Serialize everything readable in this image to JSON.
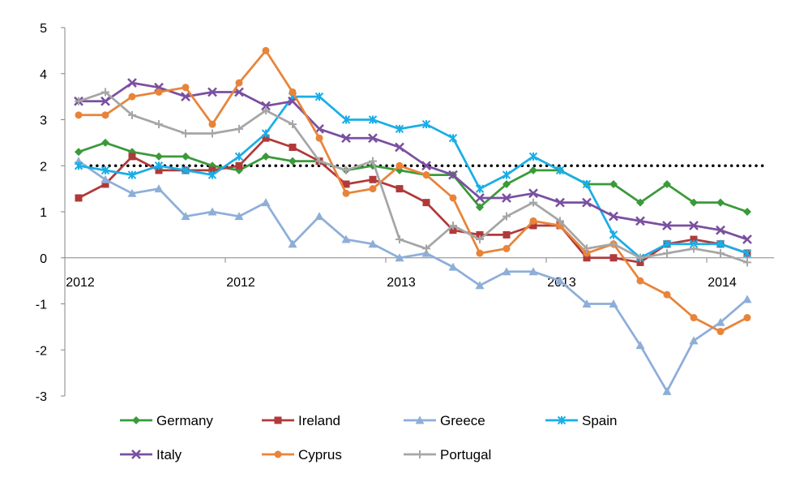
{
  "chart_data": {
    "type": "line",
    "title": "",
    "xlabel": "",
    "ylabel": "",
    "ylim": [
      -3,
      5
    ],
    "yticks": [
      -3,
      -2,
      -1,
      0,
      1,
      2,
      3,
      4,
      5
    ],
    "x_tick_labels": [
      "2012",
      "2012",
      "2013",
      "2013",
      "2014"
    ],
    "x_tick_index": [
      0,
      6,
      12,
      18,
      24
    ],
    "grid": false,
    "legend_position": "bottom",
    "reference_line": {
      "value": 2,
      "style": "dotted",
      "color": "#000000"
    },
    "series": [
      {
        "name": "Germany",
        "color": "#3a9a3a",
        "marker": "diamond",
        "values": [
          2.3,
          2.5,
          2.3,
          2.2,
          2.2,
          2.0,
          1.9,
          2.2,
          2.1,
          2.1,
          1.9,
          2.0,
          1.9,
          1.8,
          1.8,
          1.1,
          1.6,
          1.9,
          1.9,
          1.6,
          1.6,
          1.2,
          1.6,
          1.2,
          1.2,
          1.0
        ]
      },
      {
        "name": "Ireland",
        "color": "#b03a3a",
        "marker": "square",
        "values": [
          1.3,
          1.6,
          2.2,
          1.9,
          1.9,
          1.9,
          2.0,
          2.6,
          2.4,
          2.1,
          1.6,
          1.7,
          1.5,
          1.2,
          0.6,
          0.5,
          0.5,
          0.7,
          0.7,
          0.0,
          0.0,
          -0.1,
          0.3,
          0.4,
          0.3,
          0.1
        ]
      },
      {
        "name": "Greece",
        "color": "#8eaed8",
        "marker": "triangle",
        "values": [
          2.1,
          1.7,
          1.4,
          1.5,
          0.9,
          1.0,
          0.9,
          1.2,
          0.3,
          0.9,
          0.4,
          0.3,
          0.0,
          0.1,
          -0.2,
          -0.6,
          -0.3,
          -0.3,
          -0.5,
          -1.0,
          -1.0,
          -1.9,
          -2.9,
          -1.8,
          -1.4,
          -0.9
        ]
      },
      {
        "name": "Spain",
        "color": "#1aaee6",
        "marker": "star",
        "values": [
          2.0,
          1.9,
          1.8,
          2.0,
          1.9,
          1.8,
          2.2,
          2.7,
          3.5,
          3.5,
          3.0,
          3.0,
          2.8,
          2.9,
          2.6,
          1.5,
          1.8,
          2.2,
          1.9,
          1.6,
          0.5,
          0.0,
          0.3,
          0.3,
          0.3,
          0.1
        ]
      },
      {
        "name": "Italy",
        "color": "#7a4fa0",
        "marker": "x",
        "values": [
          3.4,
          3.4,
          3.8,
          3.7,
          3.5,
          3.6,
          3.6,
          3.3,
          3.4,
          2.8,
          2.6,
          2.6,
          2.4,
          2.0,
          1.8,
          1.3,
          1.3,
          1.4,
          1.2,
          1.2,
          0.9,
          0.8,
          0.7,
          0.7,
          0.6,
          0.4
        ]
      },
      {
        "name": "Cyprus",
        "color": "#e8843a",
        "marker": "circle",
        "values": [
          3.1,
          3.1,
          3.5,
          3.6,
          3.7,
          2.9,
          3.8,
          4.5,
          3.6,
          2.6,
          1.4,
          1.5,
          2.0,
          1.8,
          1.3,
          0.1,
          0.2,
          0.8,
          0.7,
          0.1,
          0.3,
          -0.5,
          -0.8,
          -1.3,
          -1.6,
          -1.3
        ]
      },
      {
        "name": "Portugal",
        "color": "#a6a6a6",
        "marker": "plus",
        "values": [
          3.4,
          3.6,
          3.1,
          2.9,
          2.7,
          2.7,
          2.8,
          3.2,
          2.9,
          2.1,
          1.9,
          2.1,
          0.4,
          0.2,
          0.7,
          0.4,
          0.9,
          1.2,
          0.8,
          0.2,
          0.3,
          0.0,
          0.1,
          0.2,
          0.1,
          -0.1
        ]
      }
    ]
  }
}
